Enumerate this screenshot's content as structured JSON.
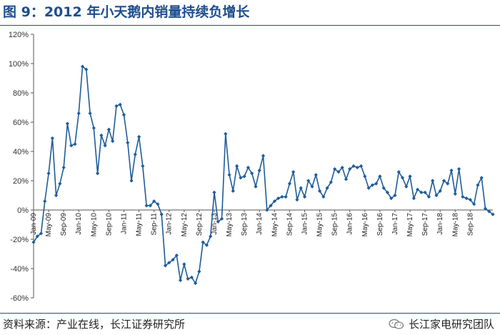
{
  "header": {
    "title": "图 9：2012 年小天鹅内销量持续负增长"
  },
  "footer": {
    "source": "资料来源：产业在线，长江证券研究所",
    "brand": "长江家电研究团队",
    "brand_icon": "wechat-icon"
  },
  "colors": {
    "title": "#1f4e8c",
    "line": "#1f5c99",
    "marker": "#1f5c99",
    "axis": "#555555"
  },
  "chart_data": {
    "type": "line",
    "title": "",
    "xlabel": "",
    "ylabel": "",
    "ylim": [
      -60,
      120
    ],
    "yticks": [
      "120%",
      "100%",
      "80%",
      "60%",
      "40%",
      "20%",
      "0%",
      "-20%",
      "-40%",
      "-60%"
    ],
    "ytick_values": [
      120,
      100,
      80,
      60,
      40,
      20,
      0,
      -20,
      -40,
      -60
    ],
    "xtick_labels": [
      "Jan-09",
      "May-09",
      "Sep-09",
      "Jan-10",
      "May-10",
      "Sep-10",
      "Jan-11",
      "May-11",
      "Sep-11",
      "Jan-12",
      "May-12",
      "Sep-12",
      "Jan-13",
      "May-13",
      "Sep-13",
      "Jan-14",
      "May-14",
      "Sep-14",
      "Jan-15",
      "May-15",
      "Sep-15",
      "Jan-16",
      "May-16",
      "Sep-16",
      "Jan-17",
      "May-17",
      "Sep-17",
      "Jan-18",
      "May-18",
      "Sep-18"
    ],
    "x_start": "Jan-09",
    "x_end": "Sep-18",
    "grid": false,
    "legend": "none",
    "series": [
      {
        "values": [
          -22,
          -18,
          -16,
          6,
          25,
          49,
          10,
          18,
          29,
          59,
          44,
          45,
          66,
          98,
          96,
          66,
          56,
          25,
          51,
          44,
          55,
          47,
          71,
          72,
          65,
          46,
          20,
          38,
          50,
          30,
          3,
          3,
          6,
          4,
          -3,
          -38,
          -36,
          -34,
          -31,
          -48,
          -37,
          -47,
          -46,
          -50,
          -42,
          -22,
          -24,
          -18,
          12,
          -8,
          -6,
          52,
          24,
          13,
          30,
          22,
          23,
          29,
          25,
          16,
          27,
          37,
          0,
          3,
          6,
          8,
          9,
          9,
          18,
          26,
          7,
          15,
          9,
          20,
          16,
          24,
          13,
          9,
          15,
          19,
          28,
          26,
          29,
          21,
          28,
          30,
          29,
          30,
          23,
          15,
          17,
          18,
          23,
          15,
          12,
          8,
          10,
          26,
          22,
          16,
          23,
          8,
          14,
          12,
          12,
          9,
          20,
          10,
          13,
          20,
          18,
          27,
          11,
          28,
          9,
          8,
          7,
          4,
          17,
          22,
          1,
          -1,
          -3
        ]
      }
    ]
  }
}
